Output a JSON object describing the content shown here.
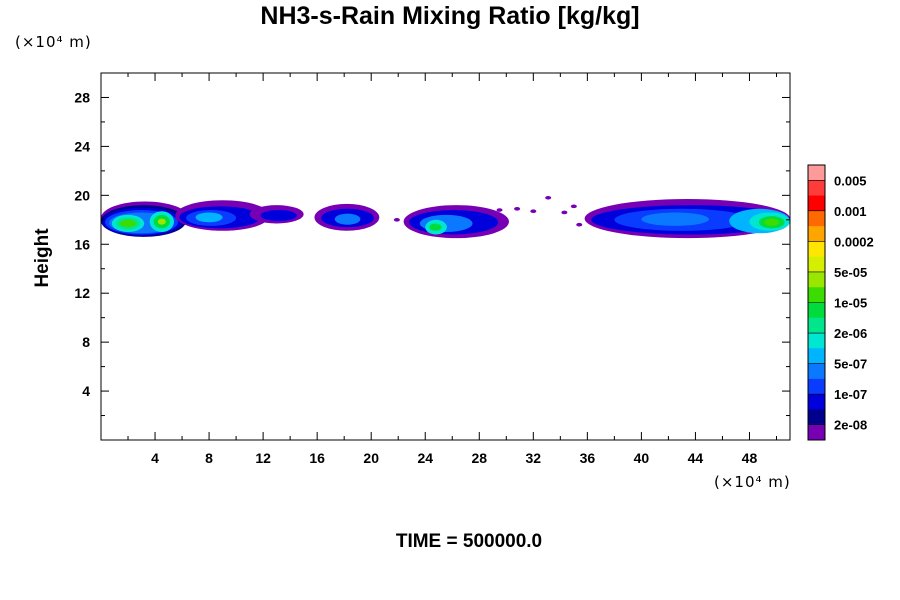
{
  "chart_data": {
    "type": "heatmap",
    "title": "NH3-s-Rain Mixing Ratio [kg/kg]",
    "ylabel": "Height",
    "xlabel": "",
    "y_unit": "(×10⁴ m)",
    "x_unit": "(×10⁴ m)",
    "xlim": [
      0,
      51
    ],
    "ylim": [
      0,
      30
    ],
    "x_ticks": [
      4,
      8,
      12,
      16,
      20,
      24,
      28,
      32,
      36,
      40,
      44,
      48
    ],
    "y_ticks": [
      4,
      8,
      12,
      16,
      20,
      24,
      28
    ],
    "colorbar": {
      "labels": [
        "0.005",
        "0.001",
        "0.0002",
        "5e-05",
        "1e-05",
        "2e-06",
        "5e-07",
        "1e-07",
        "2e-08"
      ],
      "colors_top_to_bottom": [
        "#ff9a9a",
        "#ff3c3c",
        "#ff0000",
        "#ff6a00",
        "#ffa500",
        "#ffe600",
        "#d4f000",
        "#9be600",
        "#3cdc00",
        "#00dc3c",
        "#00e68c",
        "#00e6d2",
        "#00b4ff",
        "#0a78ff",
        "#0a3cff",
        "#0000dc",
        "#00008c",
        "#7800b4"
      ]
    },
    "blobs": [
      {
        "x": [
          0,
          6.5
        ],
        "y": [
          16.8,
          19.5
        ],
        "level": 0
      },
      {
        "x": [
          0,
          6.3
        ],
        "y": [
          16.6,
          19.2
        ],
        "level": 1
      },
      {
        "x": [
          0.1,
          6.0
        ],
        "y": [
          16.7,
          19.0
        ],
        "level": 2
      },
      {
        "x": [
          0.3,
          5.7
        ],
        "y": [
          16.8,
          18.8
        ],
        "level": 3
      },
      {
        "x": [
          0.6,
          5.4
        ],
        "y": [
          16.9,
          18.6
        ],
        "level": 4
      },
      {
        "x": [
          0.8,
          3.2
        ],
        "y": [
          17.0,
          18.4
        ],
        "level": 6
      },
      {
        "x": [
          1.1,
          2.9
        ],
        "y": [
          17.2,
          18.2
        ],
        "level": 7
      },
      {
        "x": [
          1.4,
          2.6
        ],
        "y": [
          17.4,
          18.0
        ],
        "level": 9
      },
      {
        "x": [
          3.6,
          5.4
        ],
        "y": [
          17.0,
          18.7
        ],
        "level": 6
      },
      {
        "x": [
          3.9,
          5.1
        ],
        "y": [
          17.3,
          18.4
        ],
        "level": 8
      },
      {
        "x": [
          4.2,
          4.8
        ],
        "y": [
          17.6,
          18.1
        ],
        "level": 10
      },
      {
        "x": [
          5.5,
          12.5
        ],
        "y": [
          17.1,
          19.6
        ],
        "level": 0
      },
      {
        "x": [
          5.8,
          11.8
        ],
        "y": [
          17.3,
          19.1
        ],
        "level": 2
      },
      {
        "x": [
          6.3,
          10.0
        ],
        "y": [
          17.5,
          18.8
        ],
        "level": 3
      },
      {
        "x": [
          7.0,
          9.0
        ],
        "y": [
          17.8,
          18.6
        ],
        "level": 5
      },
      {
        "x": [
          11.0,
          15.0
        ],
        "y": [
          17.7,
          19.2
        ],
        "level": 0
      },
      {
        "x": [
          11.8,
          14.5
        ],
        "y": [
          17.9,
          18.8
        ],
        "level": 2
      },
      {
        "x": [
          15.8,
          20.6
        ],
        "y": [
          17.1,
          19.3
        ],
        "level": 0
      },
      {
        "x": [
          16.3,
          20.2
        ],
        "y": [
          17.4,
          18.9
        ],
        "level": 2
      },
      {
        "x": [
          17.3,
          19.2
        ],
        "y": [
          17.6,
          18.5
        ],
        "level": 4
      },
      {
        "x": [
          22.4,
          30.2
        ],
        "y": [
          16.5,
          19.2
        ],
        "level": 0
      },
      {
        "x": [
          22.8,
          29.4
        ],
        "y": [
          16.8,
          18.8
        ],
        "level": 2
      },
      {
        "x": [
          23.6,
          27.5
        ],
        "y": [
          17.0,
          18.4
        ],
        "level": 4
      },
      {
        "x": [
          24.0,
          25.6
        ],
        "y": [
          16.8,
          18.0
        ],
        "level": 6
      },
      {
        "x": [
          24.3,
          25.2
        ],
        "y": [
          17.1,
          17.7
        ],
        "level": 8
      },
      {
        "x": [
          35.8,
          51.0
        ],
        "y": [
          16.5,
          19.7
        ],
        "level": 0
      },
      {
        "x": [
          36.3,
          51.0
        ],
        "y": [
          16.8,
          19.2
        ],
        "level": 2
      },
      {
        "x": [
          38.0,
          48.0
        ],
        "y": [
          17.1,
          18.9
        ],
        "level": 3
      },
      {
        "x": [
          40.0,
          45.0
        ],
        "y": [
          17.5,
          18.6
        ],
        "level": 4
      },
      {
        "x": [
          46.5,
          51.0
        ],
        "y": [
          16.9,
          18.9
        ],
        "level": 5
      },
      {
        "x": [
          48.0,
          51.0
        ],
        "y": [
          17.1,
          18.6
        ],
        "level": 6
      },
      {
        "x": [
          48.7,
          50.6
        ],
        "y": [
          17.3,
          18.3
        ],
        "level": 8
      },
      {
        "x": [
          49.1,
          50.2
        ],
        "y": [
          17.5,
          18.1
        ],
        "level": 9
      }
    ],
    "specks": [
      {
        "x": 9.0,
        "y": 19.3
      },
      {
        "x": 21.9,
        "y": 18.0
      },
      {
        "x": 29.5,
        "y": 18.8
      },
      {
        "x": 30.8,
        "y": 18.9
      },
      {
        "x": 32.0,
        "y": 18.7
      },
      {
        "x": 33.1,
        "y": 19.8
      },
      {
        "x": 34.3,
        "y": 18.6
      },
      {
        "x": 35.4,
        "y": 17.6
      },
      {
        "x": 35.0,
        "y": 19.1
      }
    ],
    "time_label": "TIME = 500000.0"
  }
}
